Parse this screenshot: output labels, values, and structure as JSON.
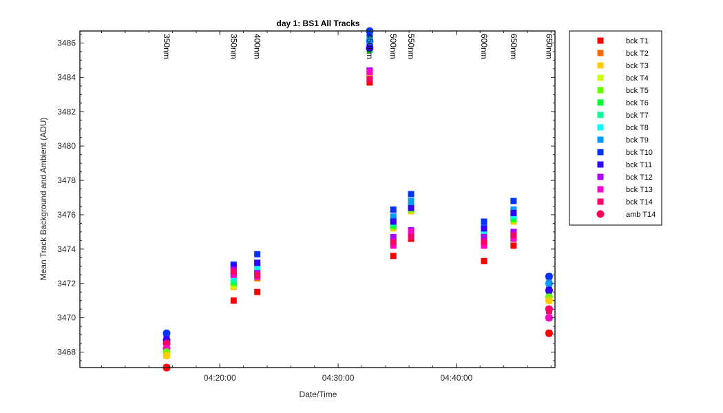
{
  "chart_data": {
    "type": "scatter",
    "title": "day 1: BS1  All Tracks",
    "xlabel": "Date/Time",
    "ylabel": "Mean Track Background and Ambient (ADU)",
    "x_type": "time",
    "xlim": [
      "04:08:10",
      "04:48:20"
    ],
    "ylim": [
      3467.1,
      3486.7
    ],
    "x_ticks": [
      "04:20:00",
      "04:30:00",
      "04:40:00"
    ],
    "y_ticks": [
      3468,
      3470,
      3472,
      3474,
      3476,
      3478,
      3480,
      3482,
      3484,
      3486
    ],
    "grid": false,
    "legend_position": "outside-right",
    "annotations": [
      {
        "text": "350nm",
        "x": "04:15:30"
      },
      {
        "text": "350nm",
        "x": "04:21:10"
      },
      {
        "text": "400nm",
        "x": "04:23:10"
      },
      {
        "text": "450nm",
        "x": "04:32:40"
      },
      {
        "text": "500nm",
        "x": "04:34:40"
      },
      {
        "text": "550nm",
        "x": "04:36:10"
      },
      {
        "text": "600nm",
        "x": "04:42:20"
      },
      {
        "text": "650nm",
        "x": "04:44:50"
      },
      {
        "text": "650nm",
        "x": "04:47:50"
      }
    ],
    "x": [
      "04:15:30",
      "04:21:10",
      "04:23:10",
      "04:32:40",
      "04:34:40",
      "04:36:10",
      "04:42:20",
      "04:44:50",
      "04:47:50"
    ],
    "series": [
      {
        "name": "bck T1",
        "marker": "square",
        "color": "#ff0000",
        "values": [
          3467.1,
          3471.0,
          3471.5,
          3483.7,
          3473.6,
          3474.6,
          3473.3,
          3474.2,
          3469.1
        ]
      },
      {
        "name": "bck T2",
        "marker": "square",
        "color": "#ff6a00",
        "values": [
          3467.8,
          3471.8,
          3472.3,
          3484.0,
          3474.3,
          3474.7,
          3474.4,
          3474.9,
          3471.0
        ]
      },
      {
        "name": "bck T3",
        "marker": "square",
        "color": "#ffcc00",
        "values": [
          3467.9,
          3471.8,
          3472.4,
          3484.1,
          3475.2,
          3476.2,
          3474.6,
          3475.6,
          3471.0
        ]
      },
      {
        "name": "bck T4",
        "marker": "square",
        "color": "#ccff00",
        "values": [
          3468.0,
          3471.9,
          3472.5,
          3484.2,
          3475.3,
          3476.3,
          3474.7,
          3475.7,
          3471.1
        ]
      },
      {
        "name": "bck T5",
        "marker": "square",
        "color": "#66ff00",
        "values": [
          3468.1,
          3472.0,
          3472.6,
          3484.4,
          3475.3,
          3476.3,
          3474.8,
          3475.7,
          3471.2
        ]
      },
      {
        "name": "bck T6",
        "marker": "square",
        "color": "#00ff33",
        "values": [
          3468.1,
          3472.1,
          3472.7,
          3485.6,
          3475.4,
          3476.4,
          3474.9,
          3475.8,
          3471.3
        ]
      },
      {
        "name": "bck T7",
        "marker": "square",
        "color": "#00ff99",
        "values": [
          3468.2,
          3472.2,
          3472.8,
          3485.8,
          3475.5,
          3476.5,
          3475.0,
          3475.9,
          3471.5
        ]
      },
      {
        "name": "bck T8",
        "marker": "square",
        "color": "#00ffff",
        "values": [
          3468.3,
          3472.4,
          3473.0,
          3486.1,
          3475.7,
          3476.7,
          3475.1,
          3476.0,
          3471.7
        ]
      },
      {
        "name": "bck T9",
        "marker": "square",
        "color": "#0099ff",
        "values": [
          3468.5,
          3472.6,
          3473.2,
          3486.3,
          3475.9,
          3476.8,
          3475.3,
          3476.3,
          3472.0
        ]
      },
      {
        "name": "bck T10",
        "marker": "square",
        "color": "#0033ff",
        "values": [
          3468.9,
          3473.1,
          3473.7,
          3486.6,
          3476.3,
          3477.2,
          3475.6,
          3476.8,
          3472.4
        ]
      },
      {
        "name": "bck T11",
        "marker": "square",
        "color": "#3300ff",
        "values": [
          3468.8,
          3473.0,
          3473.2,
          3485.8,
          3475.6,
          3476.4,
          3475.2,
          3476.1,
          3471.6
        ]
      },
      {
        "name": "bck T12",
        "marker": "square",
        "color": "#aa00ff",
        "values": [
          3468.7,
          3472.8,
          3472.6,
          3484.4,
          3474.7,
          3475.1,
          3474.7,
          3475.0,
          3470.5
        ]
      },
      {
        "name": "bck T13",
        "marker": "square",
        "color": "#ff00cc",
        "values": [
          3468.3,
          3472.5,
          3472.4,
          3484.3,
          3474.2,
          3475.0,
          3474.2,
          3474.6,
          3470.0
        ]
      },
      {
        "name": "bck T14",
        "marker": "square",
        "color": "#ff0066",
        "values": [
          3468.5,
          3472.7,
          3472.5,
          3483.9,
          3474.4,
          3474.7,
          3474.4,
          3474.8,
          3470.4
        ]
      },
      {
        "name": "amb T14",
        "marker": "circle",
        "color": "#ff0055",
        "values": [
          3467.1,
          null,
          null,
          null,
          null,
          null,
          null,
          null,
          3470.5
        ]
      }
    ],
    "circle_points": [
      {
        "x": "04:15:30",
        "y": 3469.1,
        "color": "#0033ff"
      },
      {
        "x": "04:15:30",
        "y": 3468.7,
        "color": "#3300ff"
      },
      {
        "x": "04:15:30",
        "y": 3468.5,
        "color": "#ff0066"
      },
      {
        "x": "04:15:30",
        "y": 3468.2,
        "color": "#ff00cc"
      },
      {
        "x": "04:15:30",
        "y": 3468.0,
        "color": "#66ff00"
      },
      {
        "x": "04:15:30",
        "y": 3467.8,
        "color": "#ffcc00"
      },
      {
        "x": "04:15:30",
        "y": 3467.1,
        "color": "#ff0000"
      },
      {
        "x": "04:32:40",
        "y": 3486.7,
        "color": "#0033ff"
      },
      {
        "x": "04:32:40",
        "y": 3486.1,
        "color": "#0099ff"
      },
      {
        "x": "04:32:40",
        "y": 3485.7,
        "color": "#3300ff"
      },
      {
        "x": "04:47:50",
        "y": 3472.4,
        "color": "#0033ff"
      },
      {
        "x": "04:47:50",
        "y": 3472.0,
        "color": "#0099ff"
      },
      {
        "x": "04:47:50",
        "y": 3471.6,
        "color": "#3300ff"
      },
      {
        "x": "04:47:50",
        "y": 3471.2,
        "color": "#66ff00"
      },
      {
        "x": "04:47:50",
        "y": 3471.0,
        "color": "#ffcc00"
      },
      {
        "x": "04:47:50",
        "y": 3470.5,
        "color": "#ff0066"
      },
      {
        "x": "04:47:50",
        "y": 3470.0,
        "color": "#ff00cc"
      },
      {
        "x": "04:47:50",
        "y": 3469.1,
        "color": "#ff0000"
      }
    ]
  }
}
